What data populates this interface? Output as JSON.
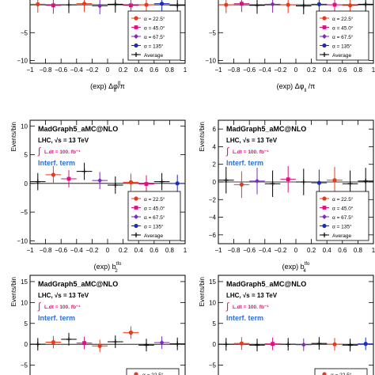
{
  "legend_entries": [
    {
      "label": "α = 22.5°",
      "color": "#e8391b",
      "marker": "circle"
    },
    {
      "label": "α = 45.0°",
      "color": "#d9127f",
      "marker": "square"
    },
    {
      "label": "α = 67.5°",
      "color": "#7b2bb5",
      "marker": "diamond"
    },
    {
      "label": "α = 135°",
      "color": "#1c2eb8",
      "marker": "circle"
    },
    {
      "label": "Average",
      "color": "#000000",
      "marker": "cross"
    }
  ],
  "info": {
    "generator": "MadGraph5_aMC@NLO",
    "lhc": "LHC, √s = 13 TeV",
    "lumi": "L.dt = 100. fb⁻¹",
    "term": "Interf. term"
  },
  "chart_data": [
    {
      "id": "top-left",
      "type": "scatter",
      "xlabel": "(exp) Δφ_ll^lf /π",
      "ylabel": "",
      "xlim": [
        -1,
        1
      ],
      "ylim": [
        -10.5,
        2
      ],
      "yticks": [
        -10,
        -5
      ],
      "yticklabels": [
        "−10",
        "−5"
      ],
      "xticks": [
        -1,
        -0.8,
        -0.6,
        -0.4,
        -0.2,
        0,
        0.2,
        0.4,
        0.6,
        0.8,
        1
      ],
      "xticklabels": [
        "−1",
        "−0.8",
        "−0.6",
        "−0.4",
        "−0.2",
        "0",
        "0.2",
        "0.4",
        "0.6",
        "0.8",
        "1"
      ],
      "show_info": false,
      "legend": "bottom-right",
      "points": [
        {
          "x": -0.9,
          "y": 0.1,
          "c": 0
        },
        {
          "x": -0.7,
          "y": -0.1,
          "c": 1
        },
        {
          "x": -0.5,
          "y": 0.0,
          "c": 4
        },
        {
          "x": -0.3,
          "y": 0.2,
          "c": 0
        },
        {
          "x": -0.1,
          "y": -0.2,
          "c": 2
        },
        {
          "x": 0.1,
          "y": 0.1,
          "c": 4
        },
        {
          "x": 0.3,
          "y": -0.1,
          "c": 1
        },
        {
          "x": 0.5,
          "y": 0.0,
          "c": 0
        },
        {
          "x": 0.7,
          "y": 0.2,
          "c": 3
        },
        {
          "x": 0.9,
          "y": -0.1,
          "c": 4
        }
      ]
    },
    {
      "id": "top-right",
      "type": "scatter",
      "xlabel": "(exp) Δφ_ll /π",
      "ylabel": "",
      "xlim": [
        -1,
        1
      ],
      "ylim": [
        -10.5,
        2
      ],
      "yticks": [
        -10,
        -5
      ],
      "yticklabels": [
        "−10",
        "−5"
      ],
      "xticks": [
        -1,
        -0.8,
        -0.6,
        -0.4,
        -0.2,
        0,
        0.2,
        0.4,
        0.6,
        0.8,
        1
      ],
      "xticklabels": [
        "−1",
        "−0.8",
        "−0.6",
        "−0.4",
        "−0.2",
        "0",
        "0.2",
        "0.4",
        "0.6",
        "0.8",
        "1"
      ],
      "show_info": false,
      "legend": "bottom-right",
      "points": [
        {
          "x": -0.9,
          "y": 0.0,
          "c": 0
        },
        {
          "x": -0.7,
          "y": 0.2,
          "c": 1
        },
        {
          "x": -0.5,
          "y": -0.1,
          "c": 4
        },
        {
          "x": -0.3,
          "y": 0.1,
          "c": 2
        },
        {
          "x": -0.1,
          "y": 0.0,
          "c": 0
        },
        {
          "x": 0.1,
          "y": -0.2,
          "c": 4
        },
        {
          "x": 0.3,
          "y": 0.1,
          "c": 3
        },
        {
          "x": 0.5,
          "y": 0.0,
          "c": 1
        },
        {
          "x": 0.7,
          "y": -0.1,
          "c": 0
        },
        {
          "x": 0.9,
          "y": 0.1,
          "c": 4
        }
      ]
    },
    {
      "id": "middle-left",
      "type": "scatter",
      "xlabel": "(exp) b₂^tfo",
      "ylabel": "Events/bin",
      "xlim": [
        -1,
        1
      ],
      "ylim": [
        -10.5,
        11
      ],
      "yticks": [
        -10,
        -5,
        0,
        5,
        10
      ],
      "yticklabels": [
        "−10",
        "−5",
        "0",
        "5",
        "10"
      ],
      "xticks": [
        -1,
        -0.8,
        -0.6,
        -0.4,
        -0.2,
        0,
        0.2,
        0.4,
        0.6,
        0.8,
        1
      ],
      "xticklabels": [
        "−1",
        "−0.8",
        "−0.6",
        "−0.4",
        "−0.2",
        "0",
        "0.2",
        "0.4",
        "0.6",
        "0.8",
        "1"
      ],
      "show_info": true,
      "legend": "bottom-right",
      "points": [
        {
          "x": -0.9,
          "y": 0.3,
          "c": 4
        },
        {
          "x": -0.7,
          "y": 1.5,
          "c": 0
        },
        {
          "x": -0.5,
          "y": 0.8,
          "c": 1
        },
        {
          "x": -0.3,
          "y": 2.1,
          "c": 4
        },
        {
          "x": -0.1,
          "y": 0.5,
          "c": 2
        },
        {
          "x": 0.1,
          "y": -0.3,
          "c": 4
        },
        {
          "x": 0.3,
          "y": 0.2,
          "c": 0
        },
        {
          "x": 0.5,
          "y": -0.1,
          "c": 1
        },
        {
          "x": 0.7,
          "y": 0.3,
          "c": 4
        },
        {
          "x": 0.9,
          "y": 0.0,
          "c": 3
        }
      ]
    },
    {
      "id": "middle-right",
      "type": "scatter",
      "xlabel": "(exp) b₄^tfo",
      "ylabel": "Events/bin",
      "xlim": [
        -1,
        1
      ],
      "ylim": [
        -7,
        7
      ],
      "yticks": [
        -6,
        -4,
        -2,
        0,
        2,
        4,
        6
      ],
      "yticklabels": [
        "−6",
        "−4",
        "−2",
        "0",
        "2",
        "4",
        "6"
      ],
      "xticks": [
        -1,
        -0.8,
        -0.6,
        -0.4,
        -0.2,
        0,
        0.2,
        0.4,
        0.6,
        0.8,
        1
      ],
      "xticklabels": [
        "−1",
        "−0.8",
        "−0.6",
        "−0.4",
        "−0.2",
        "0",
        "0.2",
        "0.4",
        "0.6",
        "0.8",
        "1"
      ],
      "show_info": true,
      "legend": "bottom-right",
      "points": [
        {
          "x": -0.9,
          "y": 0.2,
          "c": 4
        },
        {
          "x": -0.7,
          "y": -0.3,
          "c": 0
        },
        {
          "x": -0.5,
          "y": 0.1,
          "c": 2
        },
        {
          "x": -0.3,
          "y": -0.2,
          "c": 4
        },
        {
          "x": -0.1,
          "y": 0.3,
          "c": 1
        },
        {
          "x": 0.1,
          "y": 0.0,
          "c": 4
        },
        {
          "x": 0.3,
          "y": -0.1,
          "c": 3
        },
        {
          "x": 0.5,
          "y": 0.2,
          "c": 0
        },
        {
          "x": 0.7,
          "y": -0.2,
          "c": 4
        },
        {
          "x": 0.9,
          "y": 0.1,
          "c": 4
        }
      ]
    },
    {
      "id": "bottom-left",
      "type": "scatter",
      "xlabel": "",
      "ylabel": "Events/bin",
      "xlim": [
        -1,
        1
      ],
      "ylim": [
        -10,
        16.5
      ],
      "yticks": [
        -5,
        0,
        5,
        10,
        15
      ],
      "yticklabels": [
        "−5",
        "0",
        "5",
        "10",
        "15"
      ],
      "xticks": [],
      "xticklabels": [],
      "show_info": true,
      "legend": "none",
      "points": [
        {
          "x": -0.9,
          "y": 0.0,
          "c": 4
        },
        {
          "x": -0.7,
          "y": 0.5,
          "c": 0
        },
        {
          "x": -0.5,
          "y": 1.2,
          "c": 4
        },
        {
          "x": -0.3,
          "y": 0.3,
          "c": 1
        },
        {
          "x": -0.1,
          "y": -0.4,
          "c": 0
        },
        {
          "x": 0.1,
          "y": 0.6,
          "c": 4
        },
        {
          "x": 0.3,
          "y": 2.8,
          "c": 0
        },
        {
          "x": 0.5,
          "y": -0.2,
          "c": 4
        },
        {
          "x": 0.7,
          "y": 0.4,
          "c": 2
        },
        {
          "x": 0.9,
          "y": 0.1,
          "c": 4
        }
      ]
    },
    {
      "id": "bottom-right",
      "type": "scatter",
      "xlabel": "",
      "ylabel": "Events/bin",
      "xlim": [
        -1,
        1
      ],
      "ylim": [
        -10,
        16.5
      ],
      "yticks": [
        -5,
        0,
        5,
        10,
        15
      ],
      "yticklabels": [
        "−5",
        "0",
        "5",
        "10",
        "15"
      ],
      "xticks": [],
      "xticklabels": [],
      "show_info": true,
      "legend": "none",
      "points": [
        {
          "x": -0.9,
          "y": 0.0,
          "c": 4
        },
        {
          "x": -0.7,
          "y": 0.2,
          "c": 0
        },
        {
          "x": -0.5,
          "y": -0.2,
          "c": 4
        },
        {
          "x": -0.3,
          "y": 0.1,
          "c": 1
        },
        {
          "x": -0.1,
          "y": 0.0,
          "c": 4
        },
        {
          "x": 0.1,
          "y": -0.1,
          "c": 2
        },
        {
          "x": 0.3,
          "y": 0.2,
          "c": 4
        },
        {
          "x": 0.5,
          "y": 0.0,
          "c": 0
        },
        {
          "x": 0.7,
          "y": -0.2,
          "c": 4
        },
        {
          "x": 0.9,
          "y": 0.1,
          "c": 3
        }
      ]
    }
  ]
}
